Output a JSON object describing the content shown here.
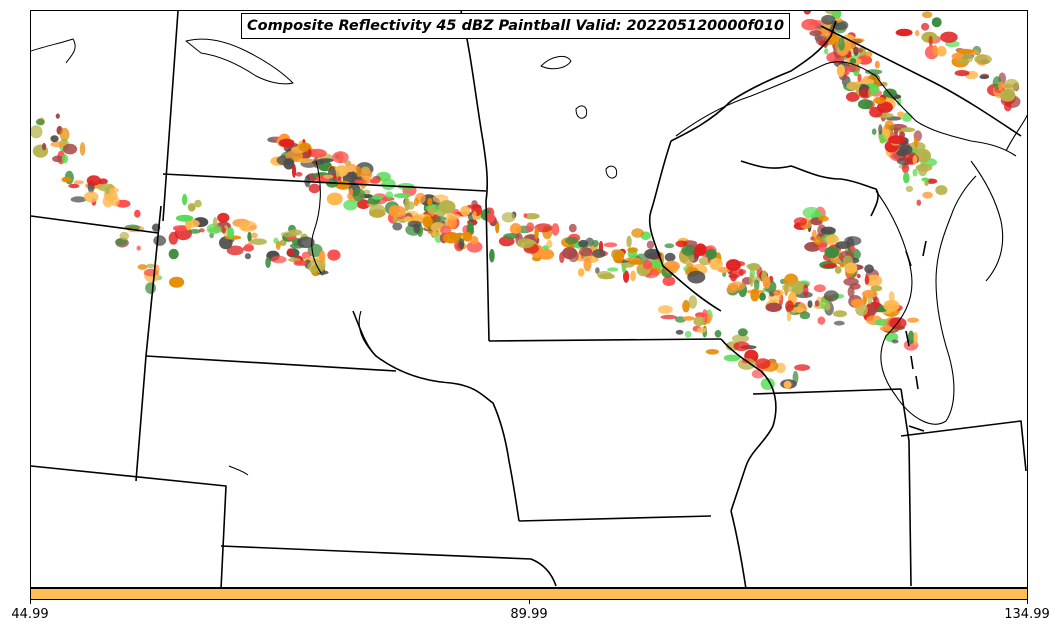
{
  "title": "Composite Reflectivity 45 dBZ Paintball Valid: 202205120000f010",
  "colorbar": {
    "fill_color": "#ffbe55",
    "tick_labels": [
      "44.99",
      "89.99",
      "134.99"
    ]
  },
  "paintball_colors": [
    "#ff4d4d",
    "#e02020",
    "#a84848",
    "#ff9933",
    "#ffb84d",
    "#e68a00",
    "#55dd55",
    "#3c8c3c",
    "#b5b34a",
    "#4d4d4d"
  ]
}
